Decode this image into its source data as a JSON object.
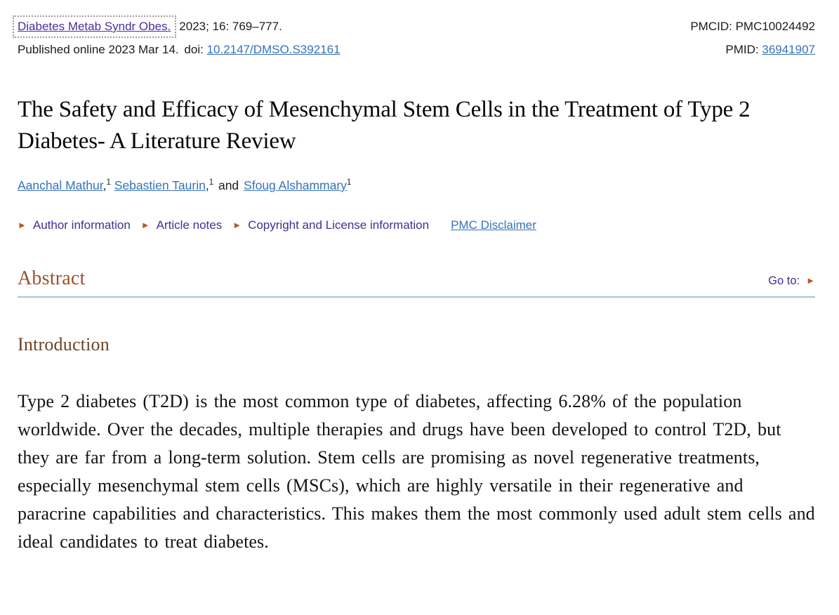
{
  "header": {
    "journal_link": "Diabetes Metab Syndr Obes.",
    "citation": "2023; 16: 769–777.",
    "pmcid_label": "PMCID:",
    "pmcid_value": "PMC10024492",
    "published_line": "Published online 2023 Mar 14.",
    "doi_label": "doi:",
    "doi_link": "10.2147/DMSO.S392161",
    "pmid_label": "PMID:",
    "pmid_link": "36941907"
  },
  "article": {
    "title": "The Safety and Efficacy of Mesenchymal Stem Cells in the Treatment of Type 2 Diabetes- A Literature Review",
    "authors": [
      {
        "name": "Aanchal Mathur",
        "affiliation_mark": "1"
      },
      {
        "name": "Sebastien Taurin",
        "affiliation_mark": "1"
      },
      {
        "name": "Sfoug Alshammary",
        "affiliation_mark": "1"
      }
    ],
    "author_separator": ",",
    "authors_conjunction": "and",
    "meta_links": [
      {
        "label": "Author information"
      },
      {
        "label": "Article notes"
      },
      {
        "label": "Copyright and License information"
      }
    ],
    "disclaimer_link": "PMC Disclaimer"
  },
  "sections": {
    "abstract_heading": "Abstract",
    "goto_label": "Go to:",
    "introduction_heading": "Introduction",
    "introduction_text": "Type 2 diabetes (T2D) is the most common type of diabetes, affecting 6.28% of the population worldwide. Over the decades, multiple therapies and drugs have been developed to control T2D, but they are far from a long-term solution. Stem cells are promising as novel regenerative treatments, especially mesenchymal stem cells (MSCs), which are highly versatile in their regenerative and paracrine capabilities and characteristics. This makes them the most commonly used adult stem cells and ideal candidates to treat diabetes."
  },
  "icons": {
    "triangle_right": "►"
  },
  "colors": {
    "link_blue": "#3672b9",
    "visited_purple": "#4a2e9e",
    "toggle_purple": "#3e3193",
    "marker_orange": "#bf5226",
    "heading_brown": "#96522f",
    "subheading_brown": "#6e4426",
    "rule_blue": "#b0c0d4"
  }
}
